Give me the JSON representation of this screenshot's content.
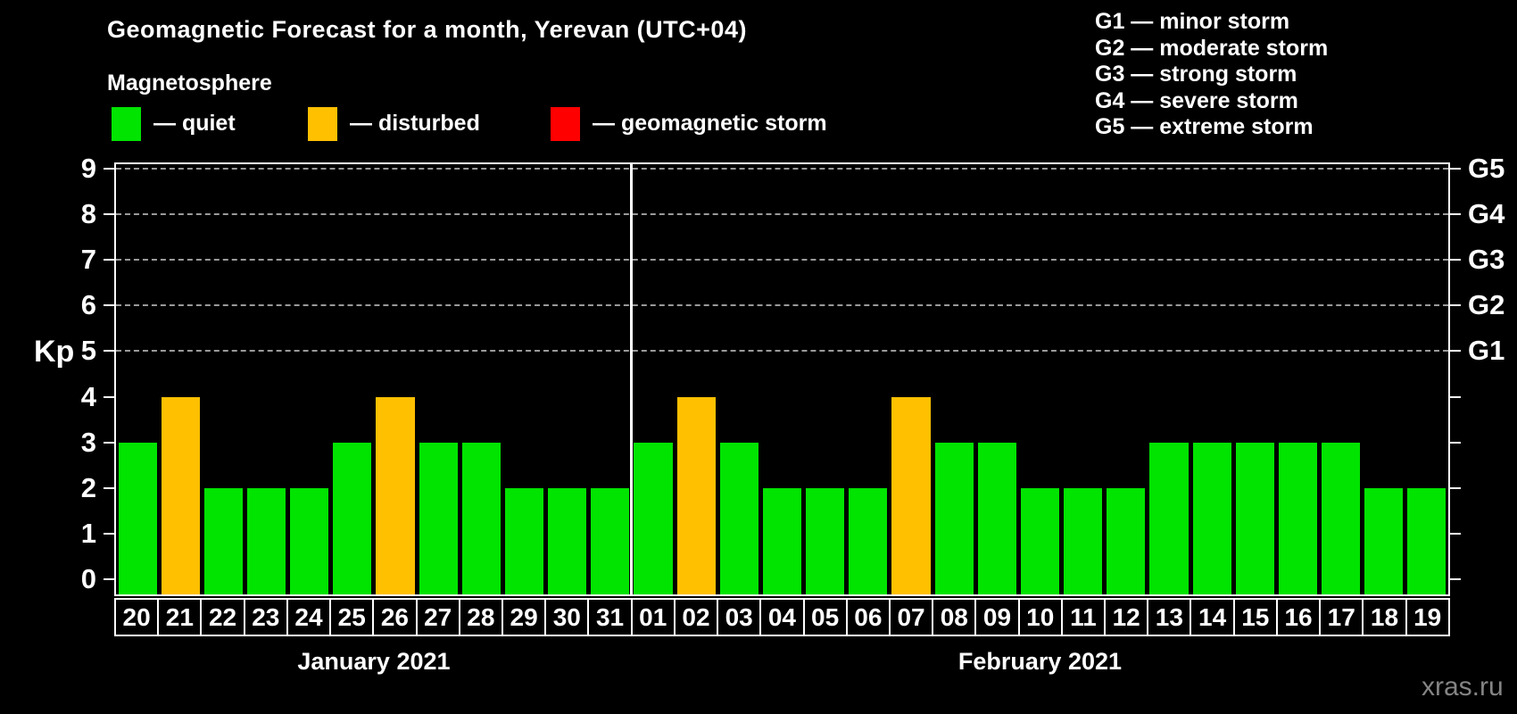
{
  "title": "Geomagnetic Forecast for a month, Yerevan (UTC+04)",
  "subtitle": "Magnetosphere",
  "legend": {
    "items": [
      {
        "name": "quiet",
        "label": "— quiet",
        "color": "#00e400"
      },
      {
        "name": "disturbed",
        "label": "— disturbed",
        "color": "#ffc000"
      },
      {
        "name": "storm",
        "label": "— geomagnetic storm",
        "color": "#ff0000"
      }
    ]
  },
  "g_legend": {
    "items": [
      "G1 — minor storm",
      "G2 — moderate storm",
      "G3 — strong storm",
      "G4 — severe storm",
      "G5 — extreme storm"
    ]
  },
  "watermark": "xras.ru",
  "chart_data": {
    "type": "bar",
    "title": "Geomagnetic Forecast for a month, Yerevan (UTC+04)",
    "ylabel": "Kp",
    "ylim": [
      0,
      9
    ],
    "yticks": [
      0,
      1,
      2,
      3,
      4,
      5,
      6,
      7,
      8,
      9
    ],
    "gridlines_at": [
      5,
      6,
      7,
      8,
      9
    ],
    "grid": "dashed",
    "legend_position": "top",
    "right_axis": [
      {
        "label": "G1",
        "kp": 5
      },
      {
        "label": "G2",
        "kp": 6
      },
      {
        "label": "G3",
        "kp": 7
      },
      {
        "label": "G4",
        "kp": 8
      },
      {
        "label": "G5",
        "kp": 9
      }
    ],
    "state_colors": {
      "quiet": "#00e400",
      "disturbed": "#ffc000",
      "storm": "#ff0000"
    },
    "months": [
      {
        "label": "January 2021",
        "days": [
          "20",
          "21",
          "22",
          "23",
          "24",
          "25",
          "26",
          "27",
          "28",
          "29",
          "30",
          "31"
        ],
        "values": [
          3,
          4,
          2,
          2,
          2,
          3,
          4,
          3,
          3,
          2,
          2,
          2
        ],
        "states": [
          "quiet",
          "disturbed",
          "quiet",
          "quiet",
          "quiet",
          "quiet",
          "disturbed",
          "quiet",
          "quiet",
          "quiet",
          "quiet",
          "quiet"
        ]
      },
      {
        "label": "February 2021",
        "days": [
          "01",
          "02",
          "03",
          "04",
          "05",
          "06",
          "07",
          "08",
          "09",
          "10",
          "11",
          "12",
          "13",
          "14",
          "15",
          "16",
          "17",
          "18",
          "19"
        ],
        "values": [
          3,
          4,
          3,
          2,
          2,
          2,
          4,
          3,
          3,
          2,
          2,
          2,
          3,
          3,
          3,
          3,
          3,
          2,
          2
        ],
        "states": [
          "quiet",
          "disturbed",
          "quiet",
          "quiet",
          "quiet",
          "quiet",
          "disturbed",
          "quiet",
          "quiet",
          "quiet",
          "quiet",
          "quiet",
          "quiet",
          "quiet",
          "quiet",
          "quiet",
          "quiet",
          "quiet",
          "quiet"
        ]
      }
    ]
  }
}
